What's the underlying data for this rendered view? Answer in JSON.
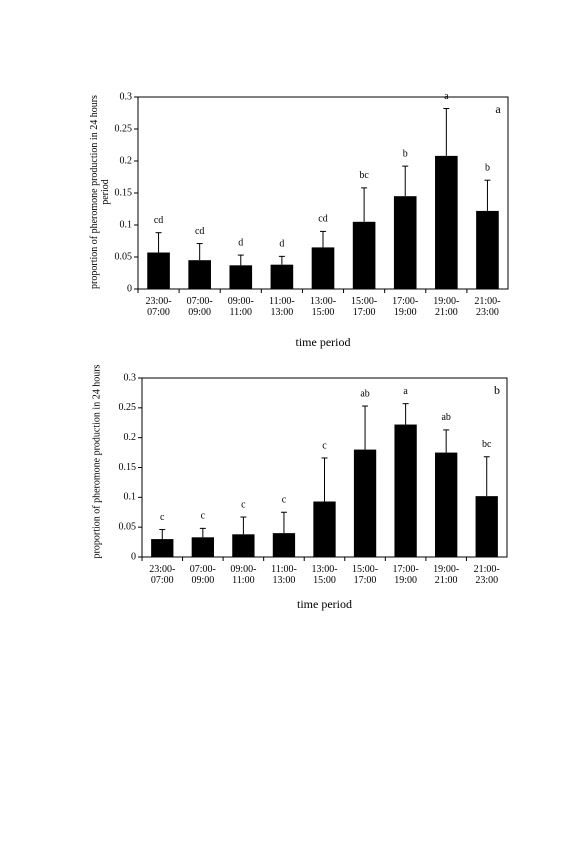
{
  "chart_data": [
    {
      "type": "bar",
      "panel_label": "a",
      "y_label": "proportion of pheromone production in 24 hours period",
      "x_label": "time period",
      "categories": [
        "23:00-\n07:00",
        "07:00-\n09:00",
        "09:00-\n11:00",
        "11:00-\n13:00",
        "13:00-\n15:00",
        "15:00-\n17:00",
        "17:00-\n19:00",
        "19:00-\n21:00",
        "21:00-\n23:00"
      ],
      "values": [
        0.057,
        0.045,
        0.037,
        0.038,
        0.065,
        0.105,
        0.145,
        0.208,
        0.122
      ],
      "errors": [
        0.031,
        0.026,
        0.016,
        0.013,
        0.025,
        0.053,
        0.047,
        0.074,
        0.048
      ],
      "annotations": [
        "cd",
        "cd",
        "d",
        "d",
        "cd",
        "bc",
        "b",
        "a",
        "b"
      ],
      "color": "#000000",
      "ylim": [
        0,
        0.3
      ],
      "yticks": [
        0,
        0.05,
        0.1,
        0.15,
        0.2,
        0.25,
        0.3
      ]
    },
    {
      "type": "bar",
      "panel_label": "b",
      "y_label": "proportion of pheromone production in 24 hours",
      "x_label": "time period",
      "categories": [
        "23:00-\n07:00",
        "07:00-\n09:00",
        "09:00-\n11:00",
        "11:00-\n13:00",
        "13:00-\n15:00",
        "15:00-\n17:00",
        "17:00-\n19:00",
        "19:00-\n21:00",
        "21:00-\n23:00"
      ],
      "values": [
        0.03,
        0.033,
        0.038,
        0.04,
        0.093,
        0.18,
        0.222,
        0.175,
        0.102
      ],
      "errors": [
        0.016,
        0.015,
        0.029,
        0.035,
        0.073,
        0.073,
        0.035,
        0.038,
        0.066
      ],
      "annotations": [
        "c",
        "c",
        "c",
        "c",
        "c",
        "ab",
        "a",
        "ab",
        "bc"
      ],
      "color": "#000000",
      "ylim": [
        0,
        0.3
      ],
      "yticks": [
        0,
        0.05,
        0.1,
        0.15,
        0.2,
        0.25,
        0.3
      ]
    }
  ]
}
